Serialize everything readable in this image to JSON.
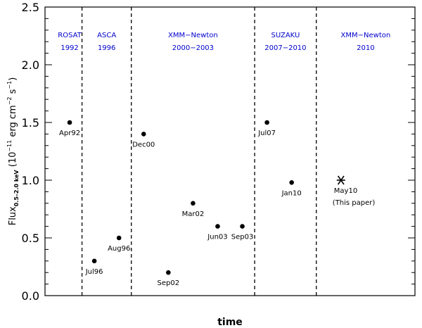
{
  "chart_data": {
    "type": "scatter",
    "title": "",
    "xlabel": "time",
    "ylabel": {
      "prefix": "Flux",
      "subscript": "0.5–2.0 keV",
      "units_pre": "(10",
      "exp1": "−11",
      "units_mid": " erg cm",
      "exp2": "−2",
      "units_mid2": " s",
      "exp3": "−1",
      "units_post": ")"
    },
    "ylim": [
      0.0,
      2.5
    ],
    "yticks": [
      0.0,
      0.5,
      1.0,
      1.5,
      2.0,
      2.5
    ],
    "ytick_labels": [
      "0.0",
      "0.5",
      "1.0",
      "1.5",
      "2.0",
      "2.5"
    ],
    "xlim": [
      0,
      15
    ],
    "points": [
      {
        "label": "Apr92",
        "x": 1.0,
        "y": 1.5,
        "marker": "dot"
      },
      {
        "label": "Jul96",
        "x": 2.0,
        "y": 0.3,
        "marker": "dot"
      },
      {
        "label": "Aug96",
        "x": 3.0,
        "y": 0.5,
        "marker": "dot"
      },
      {
        "label": "Dec00",
        "x": 4.0,
        "y": 1.4,
        "marker": "dot"
      },
      {
        "label": "Sep02",
        "x": 5.0,
        "y": 0.2,
        "marker": "dot"
      },
      {
        "label": "Mar02",
        "x": 6.0,
        "y": 0.8,
        "marker": "dot"
      },
      {
        "label": "Jun03",
        "x": 7.0,
        "y": 0.6,
        "marker": "dot"
      },
      {
        "label": "Sep03",
        "x": 8.0,
        "y": 0.6,
        "marker": "dot"
      },
      {
        "label": "Jul07",
        "x": 9.0,
        "y": 1.5,
        "marker": "dot"
      },
      {
        "label": "Jan10",
        "x": 10.0,
        "y": 0.98,
        "marker": "dot"
      },
      {
        "label": "May10",
        "x": 12.0,
        "y": 1.0,
        "marker": "star",
        "note": "(This paper)"
      }
    ],
    "dividers_x": [
      1.5,
      3.5,
      8.5,
      11.0
    ],
    "missions": [
      {
        "name": "ROSAT",
        "years": "1992",
        "x": 1.0
      },
      {
        "name": "ASCA",
        "years": "1996",
        "x": 2.5
      },
      {
        "name": "XMM−Newton",
        "years": "2000−2003",
        "x": 6.0
      },
      {
        "name": "SUZAKU",
        "years": "2007−2010",
        "x": 9.75
      },
      {
        "name": "XMM−Newton",
        "years": "2010",
        "x": 13.0
      }
    ],
    "colors": {
      "mission_text": "#0000cc",
      "axes": "#000000",
      "markers": "#000000"
    }
  }
}
